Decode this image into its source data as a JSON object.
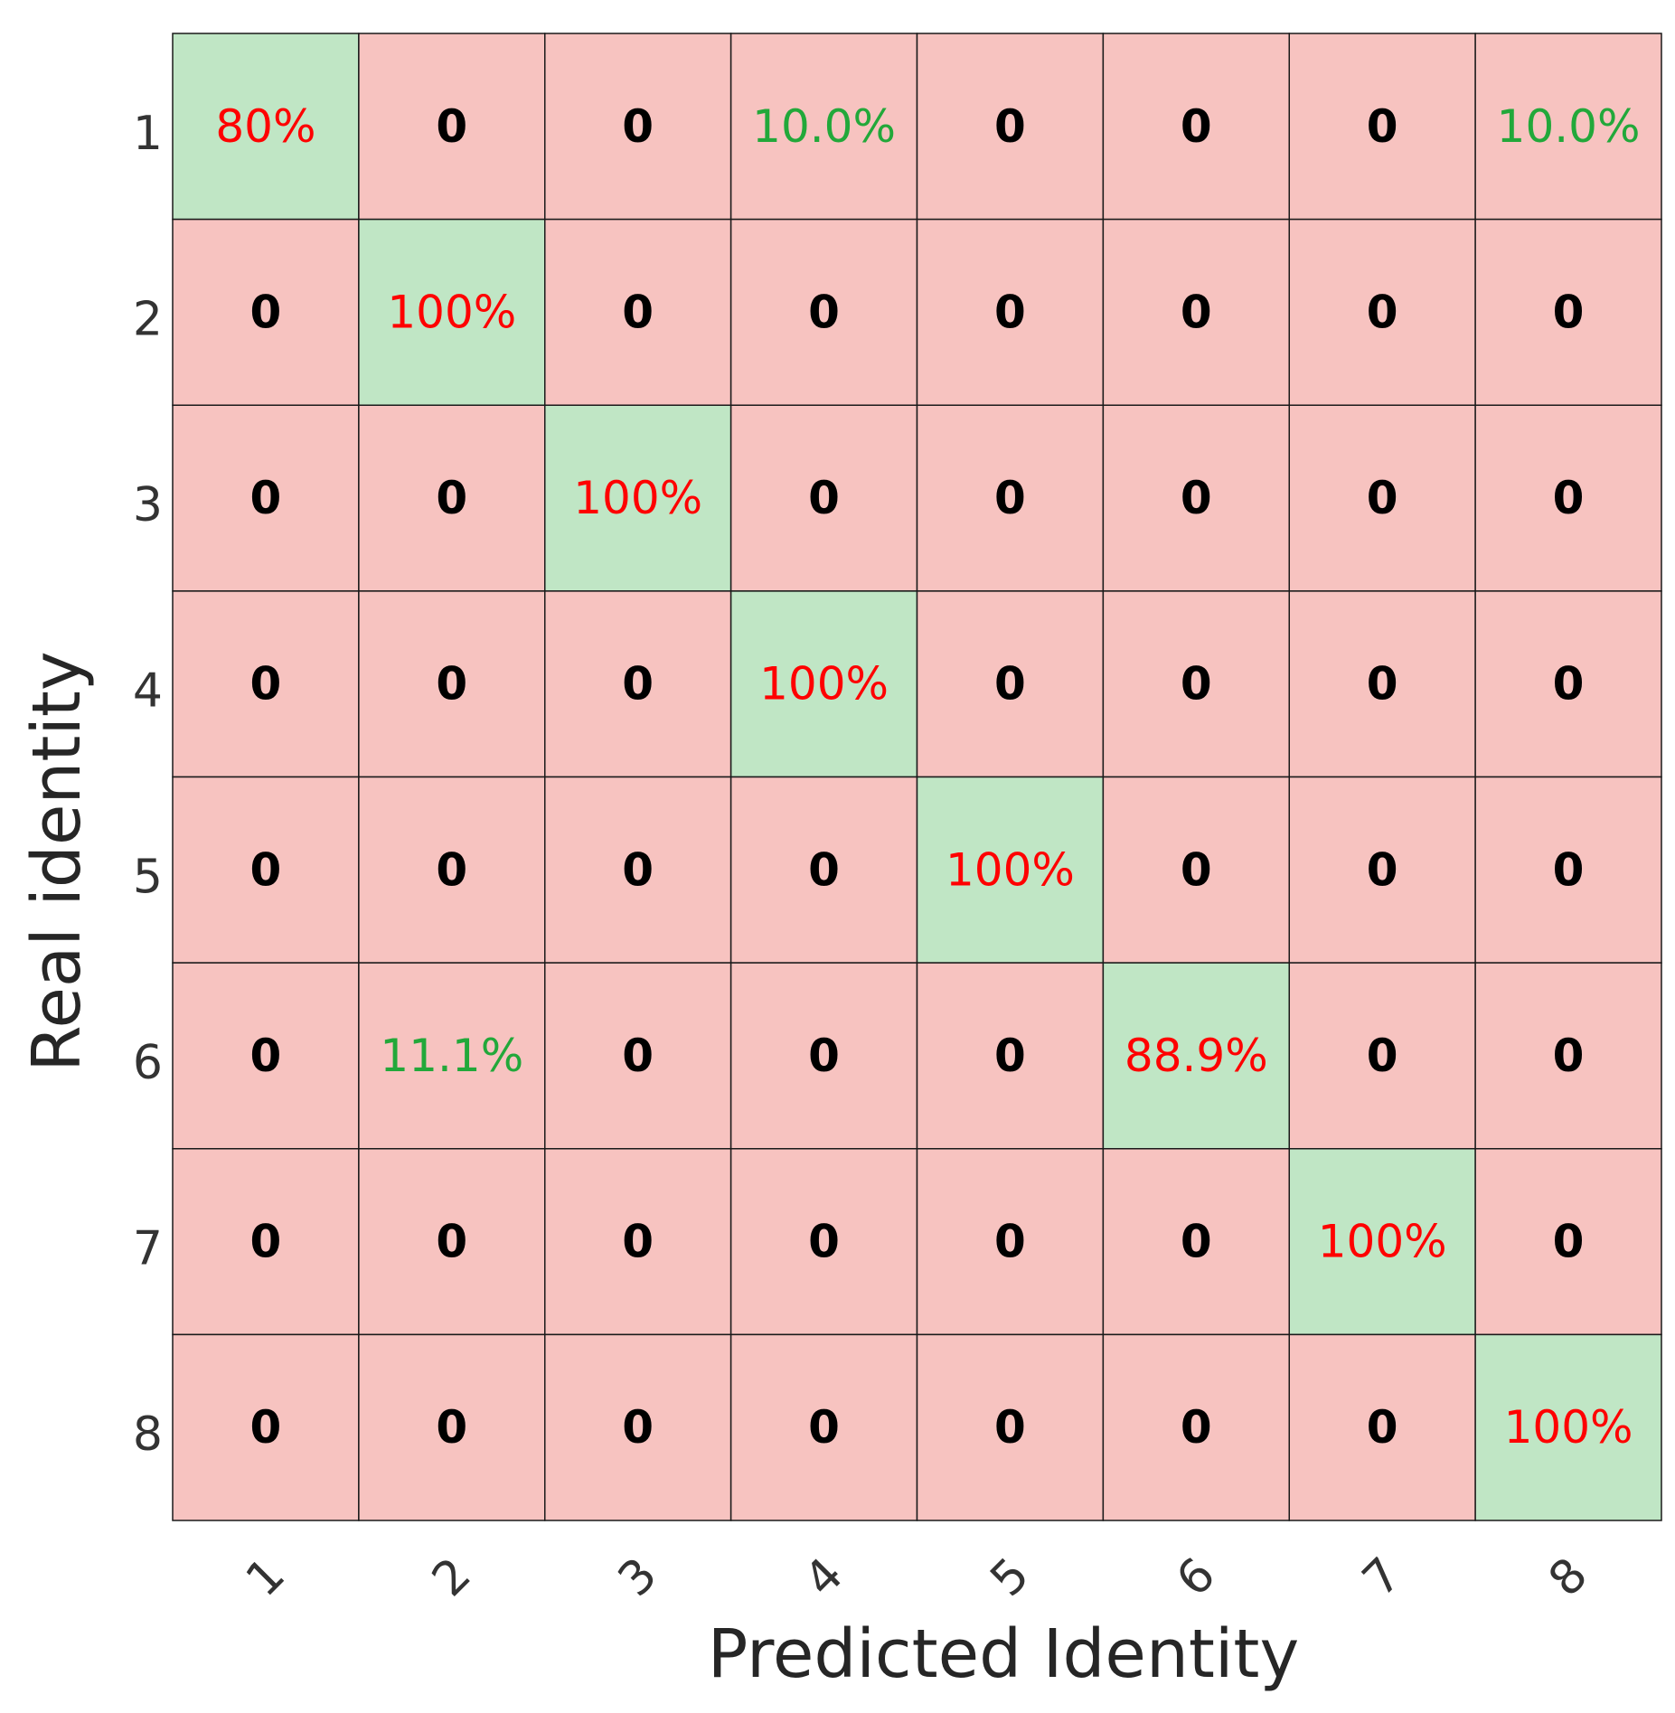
{
  "chart_data": {
    "type": "heatmap",
    "xlabel": "Predicted Identity",
    "ylabel": "Real identity",
    "x_categories": [
      "1",
      "2",
      "3",
      "4",
      "5",
      "6",
      "7",
      "8"
    ],
    "y_categories": [
      "1",
      "2",
      "3",
      "4",
      "5",
      "6",
      "7",
      "8"
    ],
    "cells": [
      [
        "80%",
        "0",
        "0",
        "10.0%",
        "0",
        "0",
        "0",
        "10.0%"
      ],
      [
        "0",
        "100%",
        "0",
        "0",
        "0",
        "0",
        "0",
        "0"
      ],
      [
        "0",
        "0",
        "100%",
        "0",
        "0",
        "0",
        "0",
        "0"
      ],
      [
        "0",
        "0",
        "0",
        "100%",
        "0",
        "0",
        "0",
        "0"
      ],
      [
        "0",
        "0",
        "0",
        "0",
        "100%",
        "0",
        "0",
        "0"
      ],
      [
        "0",
        "11.1%",
        "0",
        "0",
        "0",
        "88.9%",
        "0",
        "0"
      ],
      [
        "0",
        "0",
        "0",
        "0",
        "0",
        "0",
        "100%",
        "0"
      ],
      [
        "0",
        "0",
        "0",
        "0",
        "0",
        "0",
        "0",
        "100%"
      ]
    ],
    "colors": {
      "diagonal_bg": "#c0e6c5",
      "off_diagonal_bg": "#f7c3c0",
      "diagonal_text": "#ff0000",
      "nonzero_off_diagonal_text": "#22a83a",
      "zero_text": "#000000",
      "grid_line": "#1a1a1a"
    }
  }
}
